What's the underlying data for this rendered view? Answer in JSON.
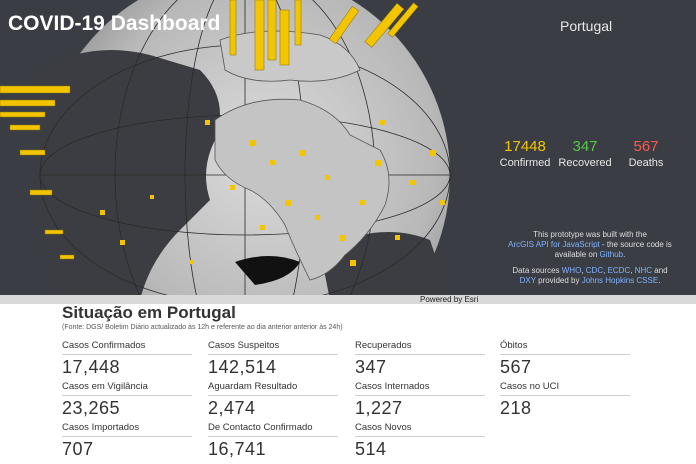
{
  "dashboard": {
    "title": "COVID-19 Dashboard",
    "country": "Portugal",
    "stats": {
      "confirmed": {
        "value": "17448",
        "label": "Confirmed"
      },
      "recovered": {
        "value": "347",
        "label": "Recovered"
      },
      "deaths": {
        "value": "567",
        "label": "Deaths"
      }
    },
    "info": {
      "pre": "This prototype was built with the",
      "api_link": "ArcGIS API for JavaScript",
      "mid": " - the source code is available on ",
      "github_link": "Github",
      "post": "."
    },
    "sources": {
      "pre": "Data sources ",
      "who": "WHO",
      "cdc": "CDC",
      "ecdc": "ECDC",
      "nhc": "NHC",
      "and": " and ",
      "dxy": "DXY",
      "provided": " provided by ",
      "jhu": "Johns Hopkins CSSE",
      "post": "."
    },
    "powered_by": "Powered by Esri",
    "colors": {
      "confirmed": "#f2c500",
      "recovered": "#56c949",
      "deaths": "#ff5a4a",
      "background": "#3a3d44"
    }
  },
  "panel": {
    "title": "Situação em Portugal",
    "subtitle": "(Fonte: DGS/ Boletim Diário actualizado às 12h e referente ao dia anterior anterior às 24h)",
    "cards": [
      {
        "label": "Casos Confirmados",
        "value": "17,448"
      },
      {
        "label": "Casos Suspeitos",
        "value": "142,514"
      },
      {
        "label": "Recuperados",
        "value": "347"
      },
      {
        "label": "Óbitos",
        "value": "567"
      },
      {
        "label": "Casos em Vigilância",
        "value": "23,265"
      },
      {
        "label": "Aguardam Resultado",
        "value": "2,474"
      },
      {
        "label": "Casos Internados",
        "value": "1,227"
      },
      {
        "label": "Casos no UCI",
        "value": "218"
      },
      {
        "label": "Casos Importados",
        "value": "707"
      },
      {
        "label": "De Contacto Confirmado",
        "value": "16,741"
      },
      {
        "label": "Casos Novos",
        "value": "514"
      }
    ]
  }
}
